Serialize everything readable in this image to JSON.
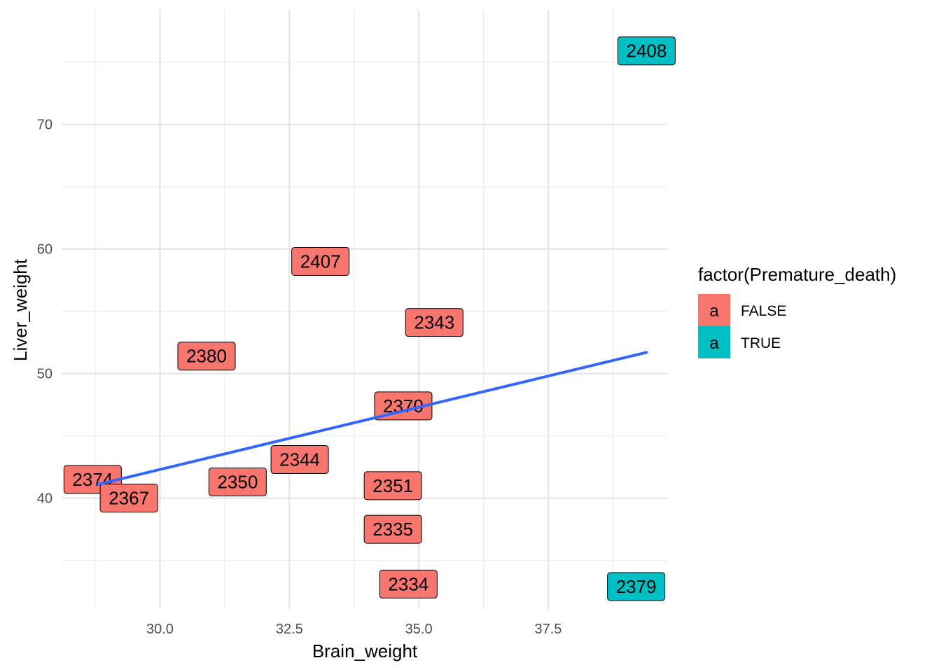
{
  "chart_data": {
    "type": "scatter",
    "xlabel": "Brain_weight",
    "ylabel": "Liver_weight",
    "xlim": [
      28.1,
      39.8
    ],
    "ylim": [
      31.1,
      79.2
    ],
    "x_ticks": [
      30.0,
      32.5,
      35.0,
      37.5
    ],
    "x_tick_labels": [
      "30.0",
      "32.5",
      "35.0",
      "37.5"
    ],
    "y_ticks": [
      40,
      50,
      60,
      70
    ],
    "y_tick_labels": [
      "40",
      "50",
      "60",
      "70"
    ],
    "grid": true,
    "legend": {
      "title": "factor(Premature_death)",
      "placement": "right",
      "key_glyph": "a",
      "entries": [
        {
          "label": "FALSE",
          "color": "#F8766D"
        },
        {
          "label": "TRUE",
          "color": "#00BFC4"
        }
      ]
    },
    "points": [
      {
        "label": "2408",
        "x": 39.4,
        "y": 75.9,
        "group": "TRUE"
      },
      {
        "label": "2407",
        "x": 33.1,
        "y": 59.0,
        "group": "FALSE"
      },
      {
        "label": "2343",
        "x": 35.3,
        "y": 54.1,
        "group": "FALSE"
      },
      {
        "label": "2380",
        "x": 30.9,
        "y": 51.4,
        "group": "FALSE"
      },
      {
        "label": "2370",
        "x": 34.7,
        "y": 47.4,
        "group": "FALSE"
      },
      {
        "label": "2344",
        "x": 32.7,
        "y": 43.1,
        "group": "FALSE"
      },
      {
        "label": "2374",
        "x": 28.7,
        "y": 41.5,
        "group": "FALSE"
      },
      {
        "label": "2350",
        "x": 31.5,
        "y": 41.3,
        "group": "FALSE"
      },
      {
        "label": "2351",
        "x": 34.5,
        "y": 41.0,
        "group": "FALSE"
      },
      {
        "label": "2367",
        "x": 29.4,
        "y": 40.0,
        "group": "FALSE"
      },
      {
        "label": "2335",
        "x": 34.5,
        "y": 37.5,
        "group": "FALSE"
      },
      {
        "label": "2334",
        "x": 34.8,
        "y": 33.1,
        "group": "FALSE"
      },
      {
        "label": "2379",
        "x": 39.2,
        "y": 32.9,
        "group": "TRUE"
      }
    ],
    "trend_line": {
      "x": [
        28.8,
        39.4
      ],
      "y": [
        41.1,
        51.7
      ],
      "color": "#3366FF"
    }
  }
}
